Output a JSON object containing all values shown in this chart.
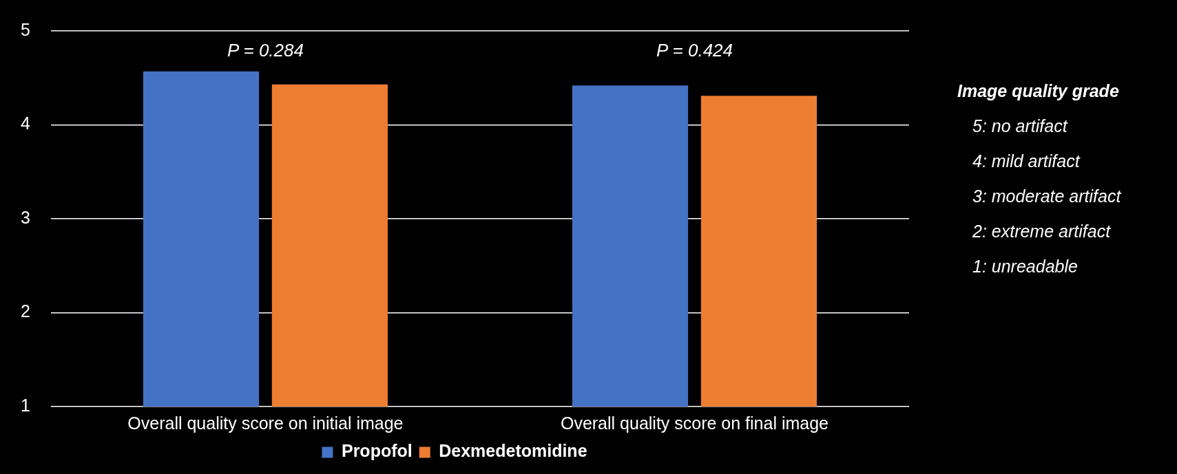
{
  "chart_data": {
    "type": "bar",
    "categories": [
      "Overall quality score on initial image",
      "Overall quality score on final image"
    ],
    "series": [
      {
        "name": "Propofol",
        "color": "#4472c4",
        "values": [
          4.57,
          4.42
        ]
      },
      {
        "name": "Dexmedetomidine",
        "color": "#ed7d31",
        "values": [
          4.43,
          4.31
        ]
      }
    ],
    "ylim": [
      1,
      5
    ],
    "yticks": [
      1,
      2,
      3,
      4,
      5
    ],
    "grid": "y",
    "legend": "bottom",
    "annotations": [
      "P = 0.284",
      "P = 0.424",
      "Image quality grade",
      "5: no artifact",
      "4: mild artifact",
      "3: moderate artifact",
      "2: extreme artifact",
      "1: unreadable"
    ]
  }
}
